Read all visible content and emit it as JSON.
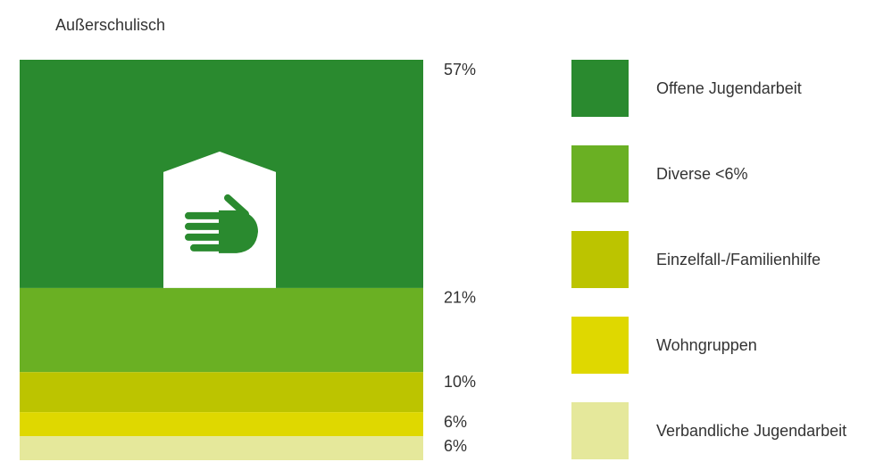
{
  "chart_data": {
    "type": "stacked-bar",
    "title": "Außerschulisch",
    "series": [
      {
        "name": "Offene Jugendarbeit",
        "color": "#2a8a2f",
        "values": [
          57
        ],
        "value_labels": [
          "57%"
        ]
      },
      {
        "name": "Diverse <6%",
        "color": "#6ab023",
        "values": [
          21
        ],
        "value_labels": [
          "21%"
        ]
      },
      {
        "name": "Einzelfall-/Familienhilfe",
        "color": "#bcc400",
        "values": [
          10
        ],
        "value_labels": [
          "10%"
        ]
      },
      {
        "name": "Wohngruppen",
        "color": "#dfd800",
        "values": [
          6
        ],
        "value_labels": [
          "6%"
        ]
      },
      {
        "name": "Verbandliche Jugendarbeit",
        "color": "#e5e89b",
        "values": [
          6
        ],
        "value_labels": [
          "6%"
        ]
      }
    ]
  }
}
